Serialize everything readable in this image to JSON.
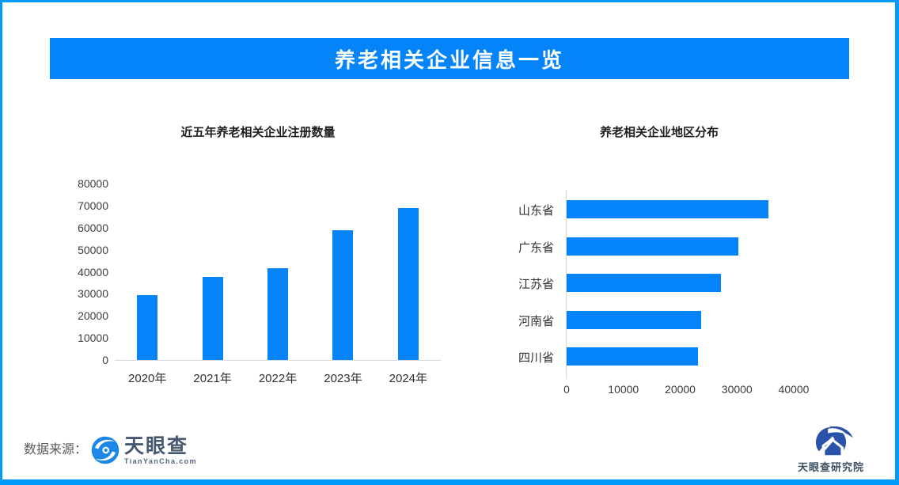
{
  "page": {
    "frame_color": "#009bfa",
    "banner": {
      "title": "养老相关企业信息一览",
      "bg_color": "#0584fa",
      "text_color": "#ffffff"
    }
  },
  "chart_data": [
    {
      "type": "bar",
      "orientation": "vertical",
      "title": "近五年养老相关企业注册数量",
      "categories": [
        "2020年",
        "2021年",
        "2022年",
        "2023年",
        "2024年"
      ],
      "values": [
        29300,
        37700,
        41500,
        58900,
        69000
      ],
      "xlabel": "",
      "ylabel": "",
      "ylim": [
        0,
        80000
      ],
      "yticks": [
        0,
        10000,
        20000,
        30000,
        40000,
        50000,
        60000,
        70000,
        80000
      ],
      "bar_color": "#0584fa",
      "grid": false,
      "legend": "none"
    },
    {
      "type": "bar",
      "orientation": "horizontal",
      "title": "养老相关企业地区分布",
      "categories": [
        "山东省",
        "广东省",
        "江苏省",
        "河南省",
        "四川省"
      ],
      "values": [
        35500,
        30300,
        27200,
        23700,
        23100
      ],
      "xlabel": "",
      "ylabel": "",
      "xlim": [
        0,
        40000
      ],
      "xticks": [
        0,
        10000,
        20000,
        30000,
        40000
      ],
      "bar_color": "#0584fa",
      "grid": false,
      "legend": "none"
    }
  ],
  "footer": {
    "datasource_label": "数据来源：",
    "tianyancha": {
      "name": "天眼查",
      "subtitle": "TianYanCha.com",
      "icon": "tianyancha-eye-icon",
      "icon_color": "#1b87e6",
      "text_color": "#46586d"
    },
    "research": {
      "name": "天眼查研究院",
      "icon": "tianyancha-research-icon",
      "icon_color": "#2a52a8",
      "text_color": "#3f5166"
    }
  }
}
